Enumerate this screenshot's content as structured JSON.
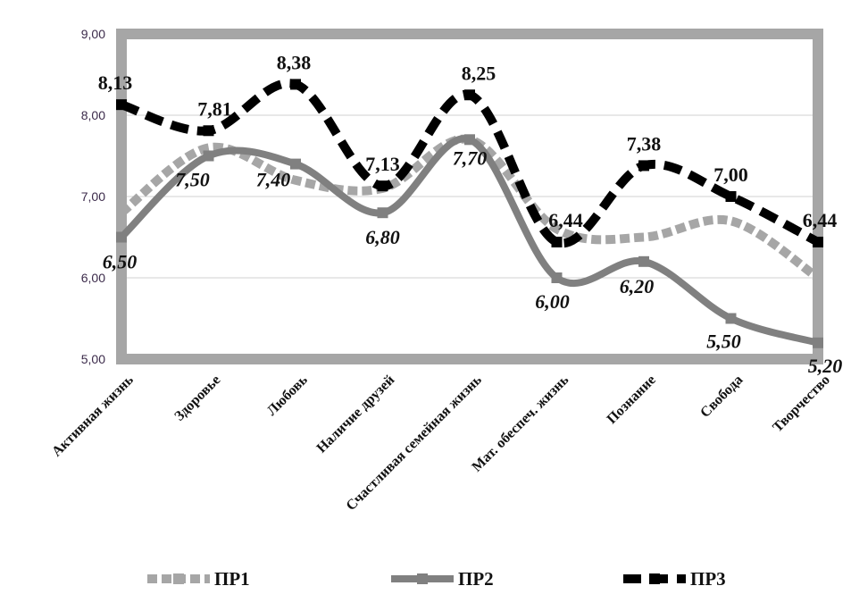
{
  "chart_data": {
    "type": "line",
    "categories": [
      "Активная жизнь",
      "Здоровье",
      "Любовь",
      "Наличие друзей",
      "Счастливая семейная жизнь",
      "Мат. обеспеч. жизнь",
      "Познание",
      "Свобода",
      "Творчество"
    ],
    "ylim": [
      5,
      9
    ],
    "yticks": [
      "5,00",
      "6,00",
      "7,00",
      "8,00",
      "9,00"
    ],
    "grid": true,
    "legend_position": "bottom",
    "series": [
      {
        "name": "ПР1",
        "values": [
          6.8,
          7.6,
          7.2,
          7.1,
          7.7,
          6.6,
          6.5,
          6.7,
          6.0
        ],
        "color": "#a6a6a6",
        "style": "dotted",
        "labels": []
      },
      {
        "name": "ПР2",
        "values": [
          6.5,
          7.5,
          7.4,
          6.8,
          7.7,
          6.0,
          6.2,
          5.5,
          5.2
        ],
        "color": "#808080",
        "style": "solid",
        "labels": [
          "6,50",
          "7,50",
          "7,40",
          "6,80",
          "7,70",
          "6,00",
          "6,20",
          "5,50",
          "5,20"
        ]
      },
      {
        "name": "ПР3",
        "values": [
          8.13,
          7.81,
          8.38,
          7.13,
          8.25,
          6.44,
          7.38,
          7.0,
          6.44
        ],
        "color": "#000000",
        "style": "dashed",
        "labels": [
          "8,13",
          "7,81",
          "8,38",
          "7,13",
          "8,25",
          "6,44",
          "7,38",
          "7,00",
          "6,44"
        ]
      }
    ]
  }
}
